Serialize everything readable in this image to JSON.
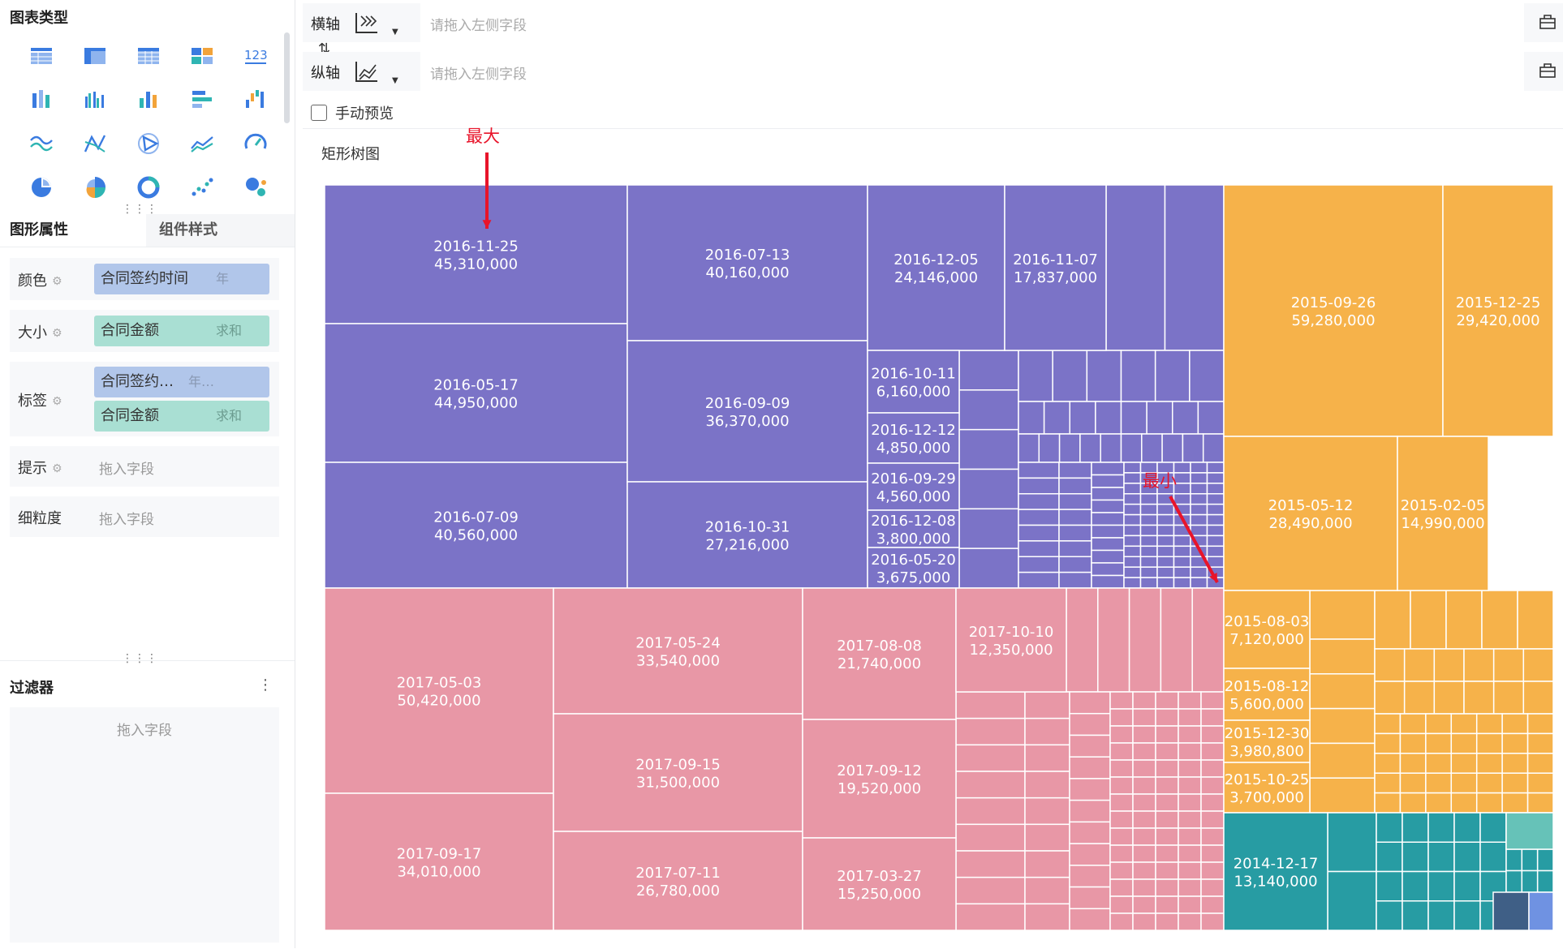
{
  "left_panel": {
    "chart_types_title": "图表类型",
    "chart_type_icons": [
      "table-icon",
      "cross-table-icon",
      "detail-table-icon",
      "kpi-card-icon",
      "number-icon",
      "stacked-bar-icon",
      "grouped-bar-icon",
      "bar-chart-icon",
      "horizontal-bar-icon",
      "waterfall-icon",
      "line-chart-icon",
      "radar-line-icon",
      "radar-icon",
      "area-chart-icon",
      "gauge-icon",
      "pie-chart-icon",
      "rose-chart-icon",
      "ring-chart-icon",
      "scatter-icon",
      "bubble-icon"
    ],
    "tabs": {
      "active": "图形属性",
      "inactive": "组件样式"
    },
    "props": {
      "color": {
        "label": "颜色",
        "field": "合同签约时间",
        "agg": "年"
      },
      "size": {
        "label": "大小",
        "field": "合同金额",
        "agg": "求和"
      },
      "label": {
        "label": "标签",
        "field1": "合同签约…",
        "agg1": "年…",
        "field2": "合同金额",
        "agg2": "求和"
      },
      "tooltip": {
        "label": "提示",
        "placeholder": "拖入字段"
      },
      "granularity": {
        "label": "细粒度",
        "placeholder": "拖入字段"
      }
    },
    "filter": {
      "title": "过滤器",
      "placeholder": "拖入字段",
      "menu": "⋮"
    }
  },
  "axes": {
    "x_label": "横轴",
    "y_label": "纵轴",
    "x_placeholder": "请拖入左侧字段",
    "y_placeholder": "请拖入左侧字段",
    "swap_icon": "⇅"
  },
  "manual_preview": "手动预览",
  "chart_title": "矩形树图",
  "colors": {
    "y2016": "#7b73c7",
    "y2017": "#e897a6",
    "y2015": "#f6b24a",
    "y2014": "#279ca3",
    "accent": "#e8142a"
  },
  "chart_data": {
    "type": "treemap",
    "title": "矩形树图",
    "annotations": [
      "最大",
      "最小"
    ],
    "groups": [
      {
        "name": "2016",
        "items": [
          {
            "label": "2016-11-25",
            "value": "45,310,000"
          },
          {
            "label": "2016-05-17",
            "value": "44,950,000"
          },
          {
            "label": "2016-07-09",
            "value": "40,560,000"
          },
          {
            "label": "2016-07-13",
            "value": "40,160,000"
          },
          {
            "label": "2016-09-09",
            "value": "36,370,000"
          },
          {
            "label": "2016-10-31",
            "value": "27,216,000"
          },
          {
            "label": "2016-12-05",
            "value": "24,146,000"
          },
          {
            "label": "2016-11-07",
            "value": "17,837,000"
          },
          {
            "label": "2016-10-11",
            "value": "6,160,000"
          },
          {
            "label": "2016-12-12",
            "value": "4,850,000"
          },
          {
            "label": "2016-09-29",
            "value": "4,560,000"
          },
          {
            "label": "2016-12-08",
            "value": "3,800,000"
          },
          {
            "label": "2016-05-20",
            "value": "3,675,000"
          }
        ]
      },
      {
        "name": "2017",
        "items": [
          {
            "label": "2017-05-03",
            "value": "50,420,000"
          },
          {
            "label": "2017-09-17",
            "value": "34,010,000"
          },
          {
            "label": "2017-05-24",
            "value": "33,540,000"
          },
          {
            "label": "2017-09-15",
            "value": "31,500,000"
          },
          {
            "label": "2017-07-11",
            "value": "26,780,000"
          },
          {
            "label": "2017-08-08",
            "value": "21,740,000"
          },
          {
            "label": "2017-09-12",
            "value": "19,520,000"
          },
          {
            "label": "2017-03-27",
            "value": "15,250,000"
          },
          {
            "label": "2017-10-10",
            "value": "12,350,000"
          }
        ]
      },
      {
        "name": "2015",
        "items": [
          {
            "label": "2015-09-26",
            "value": "59,280,000"
          },
          {
            "label": "2015-12-25",
            "value": "29,420,000"
          },
          {
            "label": "2015-05-12",
            "value": "28,490,000"
          },
          {
            "label": "2015-02-05",
            "value": "14,990,000"
          },
          {
            "label": "2015-08-03",
            "value": "7,120,000"
          },
          {
            "label": "2015-08-12",
            "value": "5,600,000"
          },
          {
            "label": "2015-12-30",
            "value": "3,980,800"
          },
          {
            "label": "2015-10-25",
            "value": "3,700,000"
          }
        ]
      },
      {
        "name": "2014",
        "items": [
          {
            "label": "2014-12-17",
            "value": "13,140,000"
          }
        ]
      }
    ]
  }
}
